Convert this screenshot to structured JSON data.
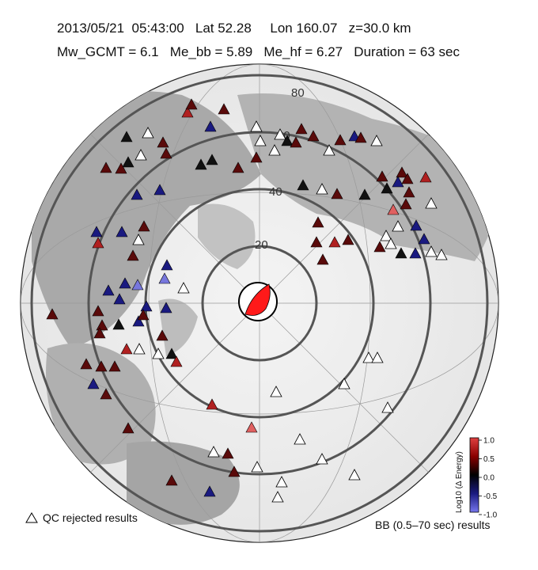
{
  "header": {
    "line1": "2013/05/21  05:43:00   Lat 52.28     Lon 160.07   z=30.0 km",
    "line2": "Mw_GCMT = 6.1   Me_bb = 5.89   Me_hf = 6.27   Duration = 63 sec"
  },
  "map": {
    "ring_labels": [
      "20",
      "40",
      "60",
      "80"
    ],
    "colors": {
      "positive": "#cc0000",
      "neutral": "#000000",
      "negative": "#3333cc",
      "rejected": "#ffffff",
      "beachball": "#ff1a1a"
    }
  },
  "legend": {
    "qc_text": "QC rejected results",
    "bb_text": "BB (0.5–70 sec) results"
  },
  "colorbar": {
    "title": "Log10 (Δ Energy)",
    "ticks": [
      "1.0",
      "0.5",
      "0.0",
      "-0.5",
      "-1.0"
    ]
  }
}
